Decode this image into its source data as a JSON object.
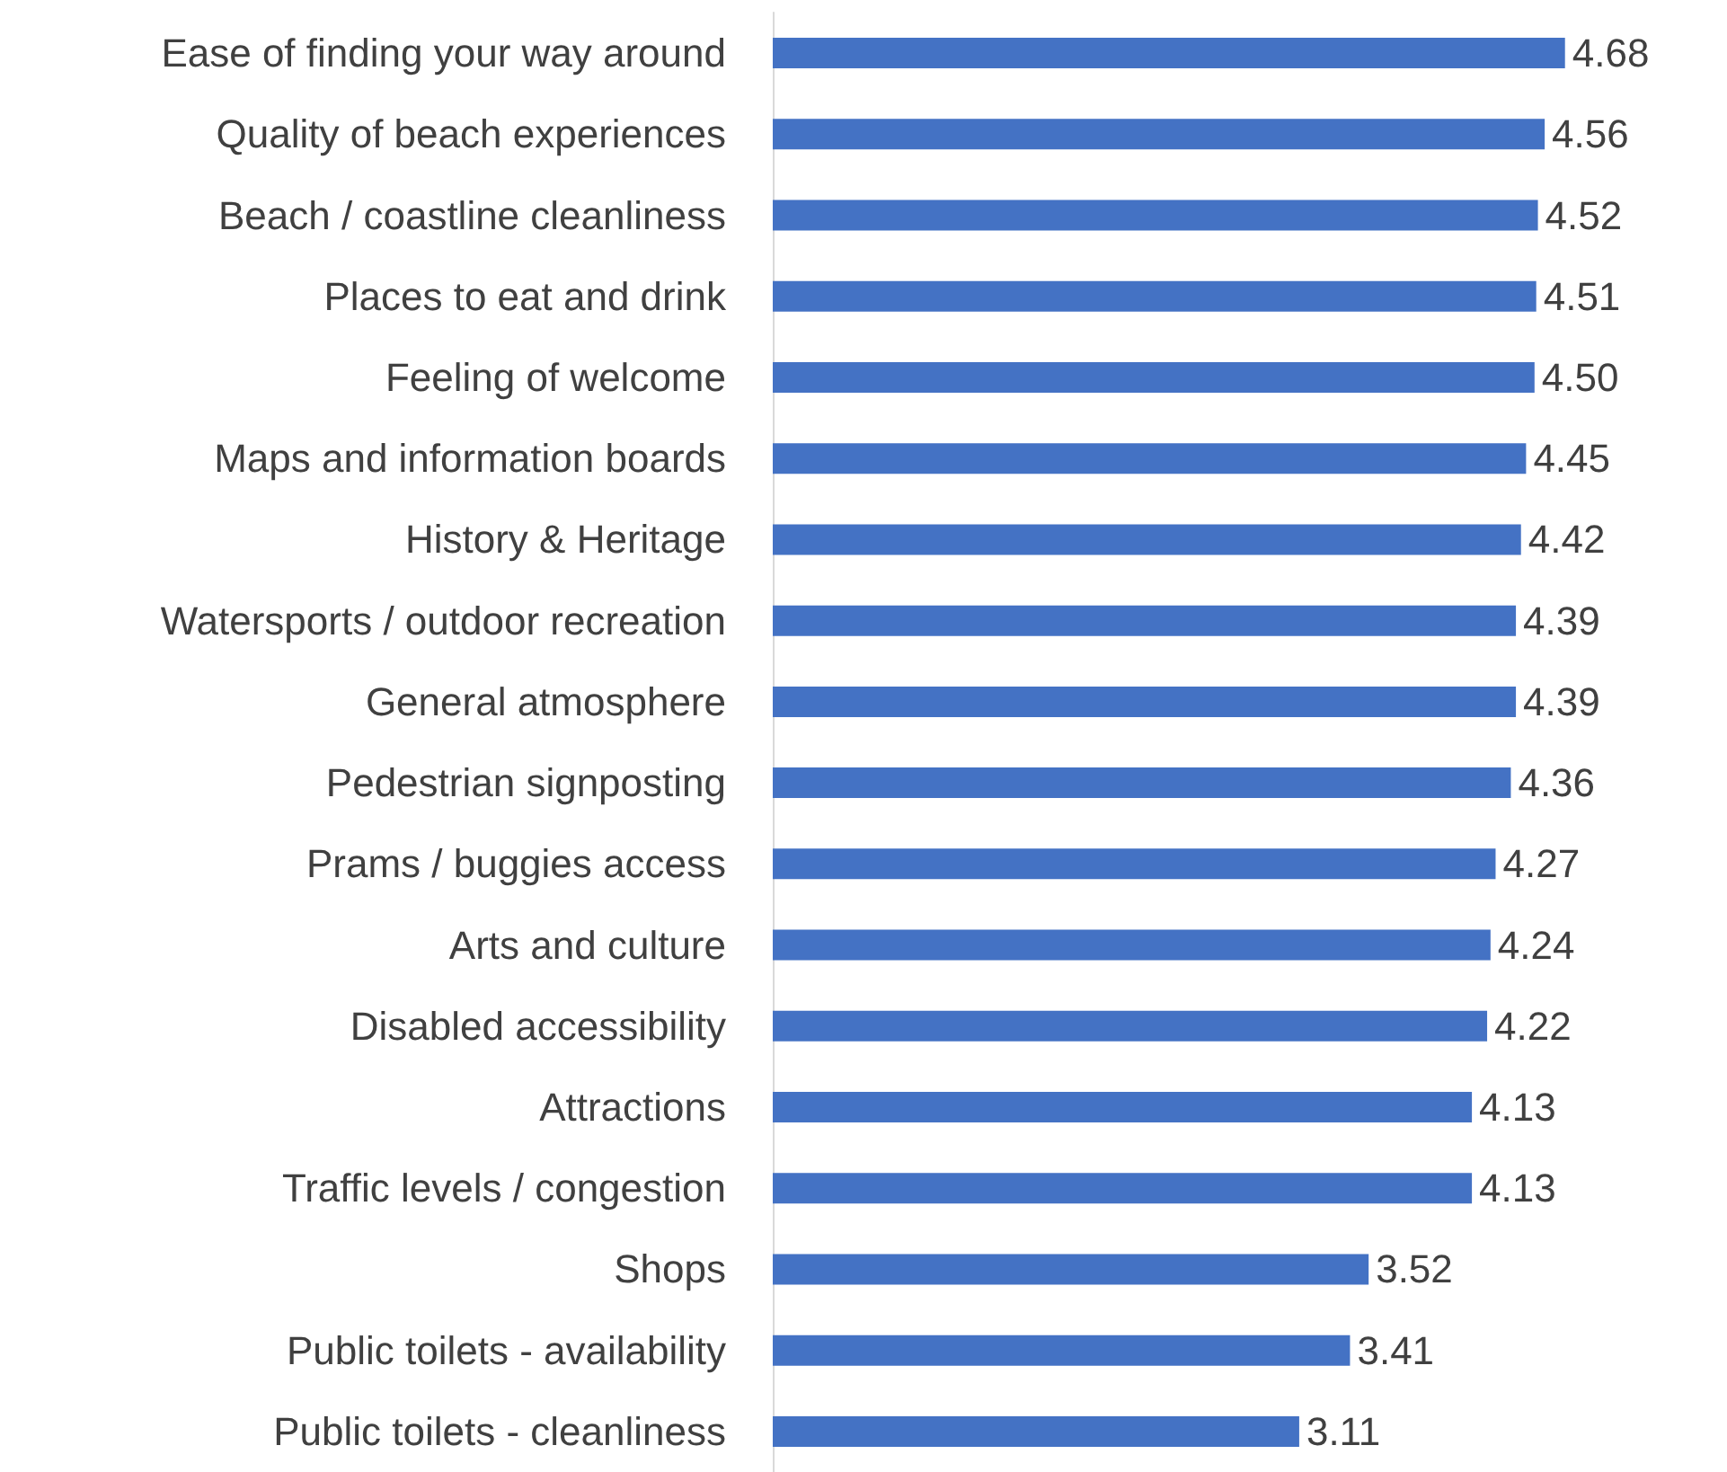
{
  "chart_data": {
    "type": "bar",
    "orientation": "horizontal",
    "categories": [
      "Ease of finding your way around",
      "Quality of beach experiences",
      "Beach / coastline cleanliness",
      "Places to eat and drink",
      "Feeling of welcome",
      "Maps and information boards",
      "History & Heritage",
      "Watersports / outdoor recreation",
      "General atmosphere",
      "Pedestrian signposting",
      "Prams / buggies access",
      "Arts and culture",
      "Disabled accessibility",
      "Attractions",
      "Traffic levels / congestion",
      "Shops",
      "Public toilets - availability",
      "Public toilets - cleanliness"
    ],
    "values": [
      4.68,
      4.56,
      4.52,
      4.51,
      4.5,
      4.45,
      4.42,
      4.39,
      4.39,
      4.36,
      4.27,
      4.24,
      4.22,
      4.13,
      4.13,
      3.52,
      3.41,
      3.11
    ],
    "value_labels": [
      "4.68",
      "4.56",
      "4.52",
      "4.51",
      "4.50",
      "4.45",
      "4.42",
      "4.39",
      "4.39",
      "4.36",
      "4.27",
      "4.24",
      "4.22",
      "4.13",
      "4.13",
      "3.52",
      "3.41",
      "3.11"
    ],
    "color": "#4472c4"
  }
}
